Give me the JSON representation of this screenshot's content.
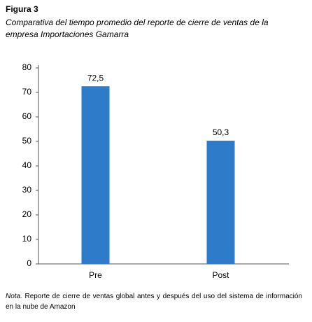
{
  "figure_label": "Figura 3",
  "chart_data": {
    "type": "bar",
    "title": "Comparativa del tiempo promedio del reporte de cierre de ventas de la empresa Importaciones Gamarra",
    "categories": [
      "Pre",
      "Post"
    ],
    "values": [
      72.5,
      50.3
    ],
    "value_labels": [
      "72,5",
      "50,3"
    ],
    "color": "#2e7cc9",
    "ylim": [
      0,
      80
    ],
    "yticks": [
      0,
      10,
      20,
      30,
      40,
      50,
      60,
      70,
      80
    ],
    "grid": false
  },
  "note": {
    "label": "Nota.",
    "text": "Reporte de cierre de ventas global antes y después del uso del sistema de información en la nube de Amazon"
  }
}
